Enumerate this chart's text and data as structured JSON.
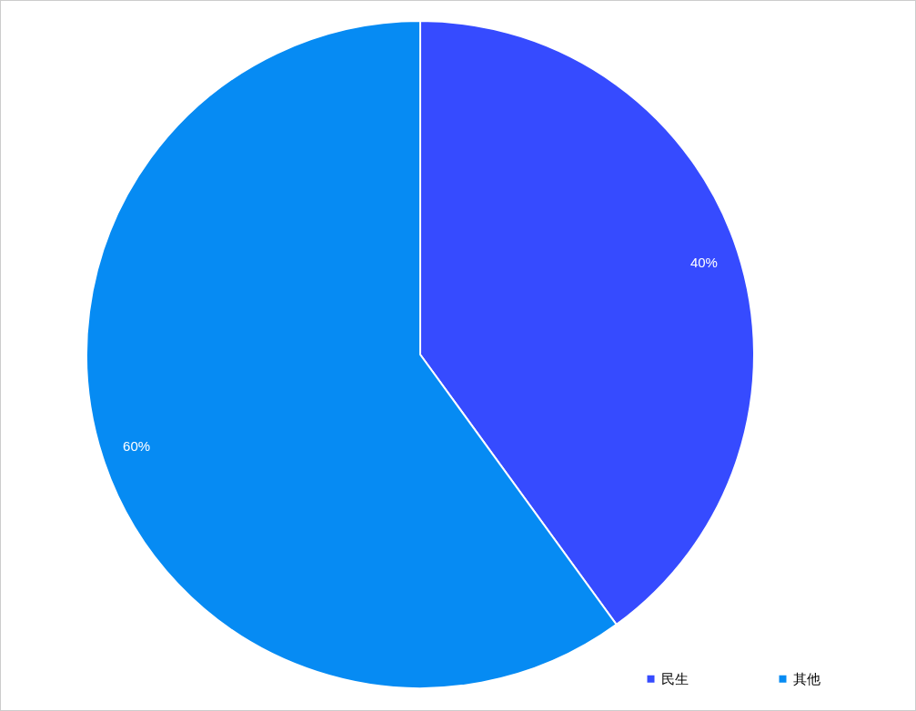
{
  "chart_data": {
    "type": "pie",
    "categories": [
      "民生",
      "其他"
    ],
    "values": [
      40,
      60
    ],
    "colors": [
      "#364bff",
      "#068bf3"
    ],
    "value_labels": [
      "40%",
      "60%"
    ],
    "legend": "bottom right"
  }
}
